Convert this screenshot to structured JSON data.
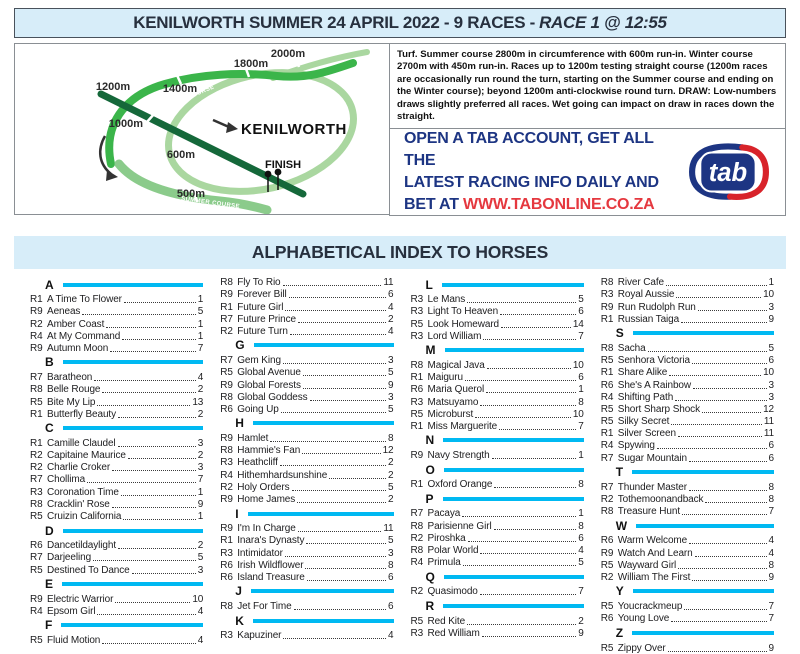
{
  "header": {
    "title": "KENILWORTH SUMMER 24 APRIL 2022 - 9 RACES - ",
    "race_info": "RACE 1 @ 12:55"
  },
  "map": {
    "title": "KENILWORTH",
    "finish_label": "FINISH",
    "winter_label": "WINTER COURSE",
    "summer_label": "SUMMER COURSE",
    "markers": {
      "m2000": "2000m",
      "m1800": "1800m",
      "m1400": "1400m",
      "m1200": "1200m",
      "m1000": "1000m",
      "m600": "600m",
      "m500": "500m"
    },
    "colors": {
      "light_green": "#aad7a0",
      "mid_green": "#3bb54a",
      "summer_green": "#8bcb8b",
      "dark_green": "#15683a"
    }
  },
  "course_info": "Turf. Summer course 2800m in circumference with 600m run-in. Winter course 2700m with 450m run-in. Races up to 1200m testing straight course (1200m races are occasionally run round the turn, starting on the Summer course and ending on the Winter course); beyond 1200m anti-clockwise round turn. DRAW: Low-numbers draws slightly preferred all races. Wet going can impact on draw in races down the straight.",
  "ad": {
    "line1": "OPEN A TAB ACCOUNT, GET ALL THE",
    "line2": "LATEST RACING INFO DAILY AND",
    "line3_prefix": "BET AT ",
    "line3_url": "WWW.TABONLINE.CO.ZA",
    "logo_text": "tab",
    "navy": "#1d3583",
    "red": "#e5383f"
  },
  "index": {
    "title": "ALPHABETICAL INDEX TO HORSES",
    "accent_color": "#00b9f2",
    "columns": [
      [
        {
          "letter": "A",
          "entries": [
            {
              "race": "R1",
              "name": "A Time To Flower",
              "page": "1"
            },
            {
              "race": "R9",
              "name": "Aeneas",
              "page": "5"
            },
            {
              "race": "R2",
              "name": "Amber Coast",
              "page": "1"
            },
            {
              "race": "R4",
              "name": "At My Command",
              "page": "1"
            },
            {
              "race": "R9",
              "name": "Autumn Moon",
              "page": "7"
            }
          ]
        },
        {
          "letter": "B",
          "entries": [
            {
              "race": "R7",
              "name": "Baratheon",
              "page": "4"
            },
            {
              "race": "R8",
              "name": "Belle Rouge",
              "page": "2"
            },
            {
              "race": "R5",
              "name": "Bite My Lip",
              "page": "13"
            },
            {
              "race": "R1",
              "name": "Butterfly Beauty",
              "page": "2"
            }
          ]
        },
        {
          "letter": "C",
          "entries": [
            {
              "race": "R1",
              "name": "Camille Claudel",
              "page": "3"
            },
            {
              "race": "R2",
              "name": "Capitaine Maurice",
              "page": "2"
            },
            {
              "race": "R2",
              "name": "Charlie Croker",
              "page": "3"
            },
            {
              "race": "R7",
              "name": "Chollima",
              "page": "7"
            },
            {
              "race": "R3",
              "name": "Coronation Time",
              "page": "1"
            },
            {
              "race": "R8",
              "name": "Cracklin' Rose",
              "page": "9"
            },
            {
              "race": "R5",
              "name": "Cruizin California",
              "page": "1"
            }
          ]
        },
        {
          "letter": "D",
          "entries": [
            {
              "race": "R6",
              "name": "Dancetildaylight",
              "page": "2"
            },
            {
              "race": "R7",
              "name": "Darjeeling",
              "page": "5"
            },
            {
              "race": "R5",
              "name": "Destined To Dance",
              "page": "3"
            }
          ]
        },
        {
          "letter": "E",
          "entries": [
            {
              "race": "R9",
              "name": "Electric Warrior",
              "page": "10"
            },
            {
              "race": "R4",
              "name": "Epsom Girl",
              "page": "4"
            }
          ]
        },
        {
          "letter": "F",
          "entries": [
            {
              "race": "R5",
              "name": "Fluid Motion",
              "page": "4"
            }
          ]
        }
      ],
      [
        {
          "letter": "",
          "entries": [
            {
              "race": "R8",
              "name": "Fly To Rio",
              "page": "11"
            },
            {
              "race": "R9",
              "name": "Forever Bill",
              "page": "6"
            },
            {
              "race": "R1",
              "name": "Future Girl",
              "page": "4"
            },
            {
              "race": "R7",
              "name": "Future Prince",
              "page": "2"
            },
            {
              "race": "R2",
              "name": "Future Turn",
              "page": "4"
            }
          ]
        },
        {
          "letter": "G",
          "entries": [
            {
              "race": "R7",
              "name": "Gem King",
              "page": "3"
            },
            {
              "race": "R5",
              "name": "Global Avenue",
              "page": "5"
            },
            {
              "race": "R9",
              "name": "Global Forests",
              "page": "9"
            },
            {
              "race": "R8",
              "name": "Global Goddess",
              "page": "3"
            },
            {
              "race": "R6",
              "name": "Going Up",
              "page": "5"
            }
          ]
        },
        {
          "letter": "H",
          "entries": [
            {
              "race": "R9",
              "name": "Hamlet",
              "page": "8"
            },
            {
              "race": "R8",
              "name": "Hammie's Fan",
              "page": "12"
            },
            {
              "race": "R3",
              "name": "Heathcliff",
              "page": "2"
            },
            {
              "race": "R4",
              "name": "Hithemhardsunshine",
              "page": "2"
            },
            {
              "race": "R2",
              "name": "Holy Orders",
              "page": "5"
            },
            {
              "race": "R9",
              "name": "Home James",
              "page": "2"
            }
          ]
        },
        {
          "letter": "I",
          "entries": [
            {
              "race": "R9",
              "name": "I'm In Charge",
              "page": "11"
            },
            {
              "race": "R1",
              "name": "Inara's Dynasty",
              "page": "5"
            },
            {
              "race": "R3",
              "name": "Intimidator",
              "page": "3"
            },
            {
              "race": "R6",
              "name": "Irish Wildflower",
              "page": "8"
            },
            {
              "race": "R6",
              "name": "Island Treasure",
              "page": "6"
            }
          ]
        },
        {
          "letter": "J",
          "entries": [
            {
              "race": "R8",
              "name": "Jet For Time",
              "page": "6"
            }
          ]
        },
        {
          "letter": "K",
          "entries": [
            {
              "race": "R3",
              "name": "Kapuziner",
              "page": "4"
            }
          ]
        }
      ],
      [
        {
          "letter": "L",
          "entries": [
            {
              "race": "R3",
              "name": "Le Mans",
              "page": "5"
            },
            {
              "race": "R3",
              "name": "Light To Heaven",
              "page": "6"
            },
            {
              "race": "R5",
              "name": "Look Homeward",
              "page": "14"
            },
            {
              "race": "R3",
              "name": "Lord William",
              "page": "7"
            }
          ]
        },
        {
          "letter": "M",
          "entries": [
            {
              "race": "R8",
              "name": "Magical Java",
              "page": "10"
            },
            {
              "race": "R1",
              "name": "Maiguru",
              "page": "6"
            },
            {
              "race": "R6",
              "name": "Maria Querol",
              "page": "1"
            },
            {
              "race": "R3",
              "name": "Matsuyamo",
              "page": "8"
            },
            {
              "race": "R5",
              "name": "Microburst",
              "page": "10"
            },
            {
              "race": "R1",
              "name": "Miss Marguerite",
              "page": "7"
            }
          ]
        },
        {
          "letter": "N",
          "entries": [
            {
              "race": "R9",
              "name": "Navy Strength",
              "page": "1"
            }
          ]
        },
        {
          "letter": "O",
          "entries": [
            {
              "race": "R1",
              "name": "Oxford Orange",
              "page": "8"
            }
          ]
        },
        {
          "letter": "P",
          "entries": [
            {
              "race": "R7",
              "name": "Pacaya",
              "page": "1"
            },
            {
              "race": "R8",
              "name": "Parisienne Girl",
              "page": "8"
            },
            {
              "race": "R2",
              "name": "Piroshka",
              "page": "6"
            },
            {
              "race": "R8",
              "name": "Polar World",
              "page": "4"
            },
            {
              "race": "R4",
              "name": "Primula",
              "page": "5"
            }
          ]
        },
        {
          "letter": "Q",
          "entries": [
            {
              "race": "R2",
              "name": "Quasimodo",
              "page": "7"
            }
          ]
        },
        {
          "letter": "R",
          "entries": [
            {
              "race": "R5",
              "name": "Red Kite",
              "page": "2"
            },
            {
              "race": "R3",
              "name": "Red William",
              "page": "9"
            }
          ]
        }
      ],
      [
        {
          "letter": "",
          "entries": [
            {
              "race": "R8",
              "name": "River Cafe",
              "page": "1"
            },
            {
              "race": "R3",
              "name": "Royal Aussie",
              "page": "10"
            },
            {
              "race": "R9",
              "name": "Run Rudolph Run",
              "page": "3"
            },
            {
              "race": "R1",
              "name": "Russian Taiga",
              "page": "9"
            }
          ]
        },
        {
          "letter": "S",
          "entries": [
            {
              "race": "R8",
              "name": "Sacha",
              "page": "5"
            },
            {
              "race": "R5",
              "name": "Senhora Victoria",
              "page": "6"
            },
            {
              "race": "R1",
              "name": "Share Alike",
              "page": "10"
            },
            {
              "race": "R6",
              "name": "She's A Rainbow",
              "page": "3"
            },
            {
              "race": "R4",
              "name": "Shifting Path",
              "page": "3"
            },
            {
              "race": "R5",
              "name": "Short Sharp Shock",
              "page": "12"
            },
            {
              "race": "R5",
              "name": "Silky Secret",
              "page": "11"
            },
            {
              "race": "R1",
              "name": "Silver Screen",
              "page": "11"
            },
            {
              "race": "R4",
              "name": "Spywing",
              "page": "6"
            },
            {
              "race": "R7",
              "name": "Sugar Mountain",
              "page": "6"
            }
          ]
        },
        {
          "letter": "T",
          "entries": [
            {
              "race": "R7",
              "name": "Thunder Master",
              "page": "8"
            },
            {
              "race": "R2",
              "name": "Tothemoonandback",
              "page": "8"
            },
            {
              "race": "R8",
              "name": "Treasure Hunt",
              "page": "7"
            }
          ]
        },
        {
          "letter": "W",
          "entries": [
            {
              "race": "R6",
              "name": "Warm Welcome",
              "page": "4"
            },
            {
              "race": "R9",
              "name": "Watch And Learn",
              "page": "4"
            },
            {
              "race": "R5",
              "name": "Wayward Girl",
              "page": "8"
            },
            {
              "race": "R2",
              "name": "William The First",
              "page": "9"
            }
          ]
        },
        {
          "letter": "Y",
          "entries": [
            {
              "race": "R5",
              "name": "Youcrackmeup",
              "page": "7"
            },
            {
              "race": "R6",
              "name": "Young Love",
              "page": "7"
            }
          ]
        },
        {
          "letter": "Z",
          "entries": [
            {
              "race": "R5",
              "name": "Zippy Over",
              "page": "9"
            }
          ]
        }
      ]
    ]
  }
}
